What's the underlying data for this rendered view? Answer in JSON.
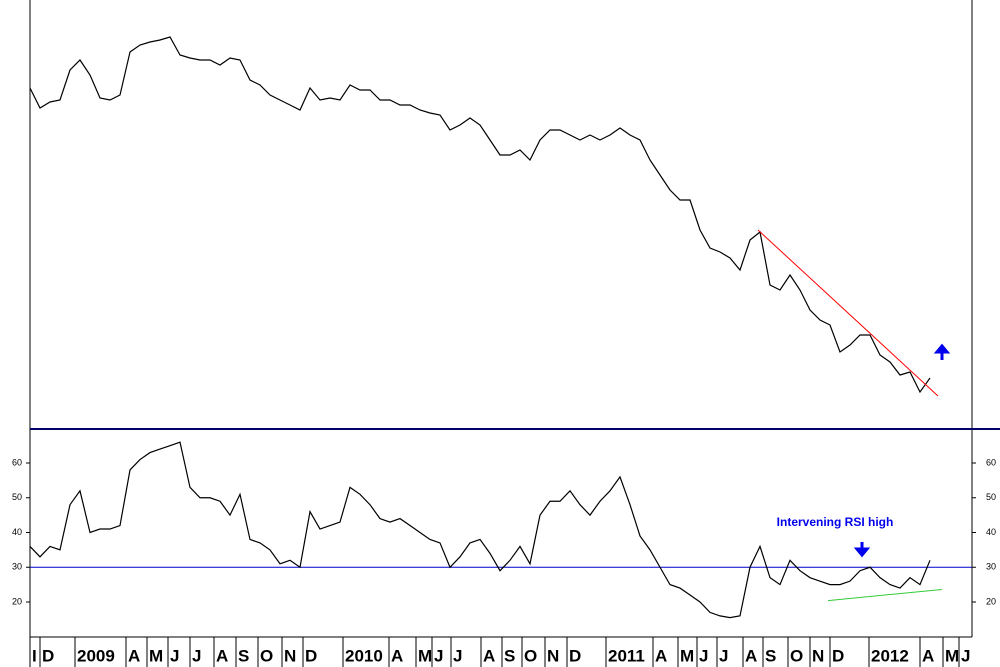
{
  "chart_data": [
    {
      "type": "line",
      "xlim": [
        0,
        188.4
      ],
      "ylim": [
        0,
        428
      ],
      "x": [
        0,
        2,
        4,
        6,
        8,
        10,
        12,
        14,
        16,
        18,
        20,
        22,
        24,
        26,
        28,
        30,
        32,
        34,
        36,
        38,
        40,
        42,
        44,
        46,
        48,
        50,
        52,
        54,
        56,
        58,
        60,
        62,
        64,
        66,
        68,
        70,
        72,
        74,
        76,
        78,
        80,
        82,
        84,
        86,
        88,
        90,
        92,
        94,
        96,
        98,
        100,
        102,
        104,
        106,
        108,
        110,
        112,
        114,
        116,
        118,
        120,
        122,
        124,
        126,
        128,
        130,
        132,
        134,
        136,
        138,
        140,
        142,
        144,
        146,
        148,
        150,
        152,
        154,
        156,
        158,
        160,
        162,
        164,
        166,
        168,
        170,
        172,
        174,
        176,
        178,
        180
      ],
      "series": [
        {
          "color": "#000000",
          "values": [
            340,
            320,
            326,
            328,
            358,
            368,
            353,
            330,
            328,
            333,
            376,
            383,
            386,
            388,
            391,
            373,
            370,
            368,
            368,
            363,
            370,
            368,
            348,
            343,
            333,
            328,
            323,
            318,
            340,
            328,
            330,
            328,
            343,
            338,
            338,
            328,
            328,
            323,
            323,
            318,
            315,
            313,
            298,
            303,
            310,
            303,
            288,
            273,
            273,
            278,
            268,
            288,
            298,
            298,
            293,
            288,
            293,
            288,
            293,
            300,
            293,
            288,
            268,
            253,
            238,
            228,
            228,
            198,
            180,
            176,
            170,
            158,
            188,
            196,
            143,
            138,
            153,
            138,
            118,
            108,
            103,
            76,
            83,
            93,
            93,
            73,
            66,
            53,
            56,
            36,
            50
          ]
        }
      ],
      "trendlines": [
        {
          "color": "#ff0000",
          "x": [
            145.6,
            181.6
          ],
          "values": [
            198,
            32
          ]
        }
      ]
    },
    {
      "type": "line",
      "xlim": [
        0,
        188.4
      ],
      "ylim": [
        10.5,
        69.5
      ],
      "yticks": [
        20,
        30,
        40,
        50,
        60
      ],
      "hline": {
        "value": 30,
        "color": "#0000cc"
      },
      "annotation": "Intervening RSI high",
      "x": [
        0,
        2,
        4,
        6,
        8,
        10,
        12,
        14,
        16,
        18,
        20,
        22,
        24,
        26,
        28,
        30,
        32,
        34,
        36,
        38,
        40,
        42,
        44,
        46,
        48,
        50,
        52,
        54,
        56,
        58,
        60,
        62,
        64,
        66,
        68,
        70,
        72,
        74,
        76,
        78,
        80,
        82,
        84,
        86,
        88,
        90,
        92,
        94,
        96,
        98,
        100,
        102,
        104,
        106,
        108,
        110,
        112,
        114,
        116,
        118,
        120,
        122,
        124,
        126,
        128,
        130,
        132,
        134,
        136,
        138,
        140,
        142,
        144,
        146,
        148,
        150,
        152,
        154,
        156,
        158,
        160,
        162,
        164,
        166,
        168,
        170,
        172,
        174,
        176,
        178,
        180
      ],
      "series": [
        {
          "color": "#000000",
          "values": [
            36,
            33,
            36,
            35,
            48,
            52,
            40,
            41,
            41,
            42,
            58,
            61,
            63,
            64,
            65,
            66,
            53,
            50,
            50,
            49,
            45,
            51,
            38,
            37,
            35,
            31,
            32,
            30,
            46,
            41,
            42,
            43,
            53,
            51,
            48,
            44,
            43,
            44,
            42,
            40,
            38,
            37,
            30,
            33,
            37,
            38,
            34,
            29,
            32,
            36,
            31,
            45,
            49,
            49,
            52,
            48,
            45,
            49,
            52,
            56,
            48,
            39,
            35,
            30,
            25,
            24,
            22,
            20,
            17,
            16,
            15.5,
            16,
            30,
            36,
            27,
            25,
            32,
            29,
            27,
            26,
            25,
            25,
            26,
            29,
            30,
            27,
            25,
            24,
            27,
            25,
            32
          ]
        }
      ],
      "trendlines": [
        {
          "color": "#33cc33",
          "x": [
            159.6,
            182.4
          ],
          "values": [
            20.4,
            23.6
          ]
        }
      ],
      "xticks": [
        {
          "value": 0,
          "label": "I"
        },
        {
          "value": 2,
          "label": "D"
        },
        {
          "value": 9,
          "label": "2009"
        },
        {
          "value": 19.2,
          "label": "A"
        },
        {
          "value": 23.4,
          "label": "M"
        },
        {
          "value": 27.6,
          "label": "J"
        },
        {
          "value": 32,
          "label": "J"
        },
        {
          "value": 36.8,
          "label": "A"
        },
        {
          "value": 41.2,
          "label": "S"
        },
        {
          "value": 45.6,
          "label": "O"
        },
        {
          "value": 50.4,
          "label": "N"
        },
        {
          "value": 54.6,
          "label": "D"
        },
        {
          "value": 62.6,
          "label": "2010"
        },
        {
          "value": 71.8,
          "label": "A"
        },
        {
          "value": 77.2,
          "label": "M"
        },
        {
          "value": 80.4,
          "label": "J"
        },
        {
          "value": 84.2,
          "label": "J"
        },
        {
          "value": 90.2,
          "label": "A"
        },
        {
          "value": 94.4,
          "label": "S"
        },
        {
          "value": 98.4,
          "label": "O"
        },
        {
          "value": 103,
          "label": "N"
        },
        {
          "value": 107.4,
          "label": "D"
        },
        {
          "value": 115.2,
          "label": "2011"
        },
        {
          "value": 124.6,
          "label": "A"
        },
        {
          "value": 129.6,
          "label": "M"
        },
        {
          "value": 133.4,
          "label": "J"
        },
        {
          "value": 137.4,
          "label": "J"
        },
        {
          "value": 142.6,
          "label": "A"
        },
        {
          "value": 146.6,
          "label": "S"
        },
        {
          "value": 151.6,
          "label": "O"
        },
        {
          "value": 156,
          "label": "N"
        },
        {
          "value": 160,
          "label": "D"
        },
        {
          "value": 167.8,
          "label": "2012"
        },
        {
          "value": 178,
          "label": "A"
        },
        {
          "value": 182.6,
          "label": "M"
        },
        {
          "value": 185.8,
          "label": "J"
        }
      ]
    }
  ]
}
